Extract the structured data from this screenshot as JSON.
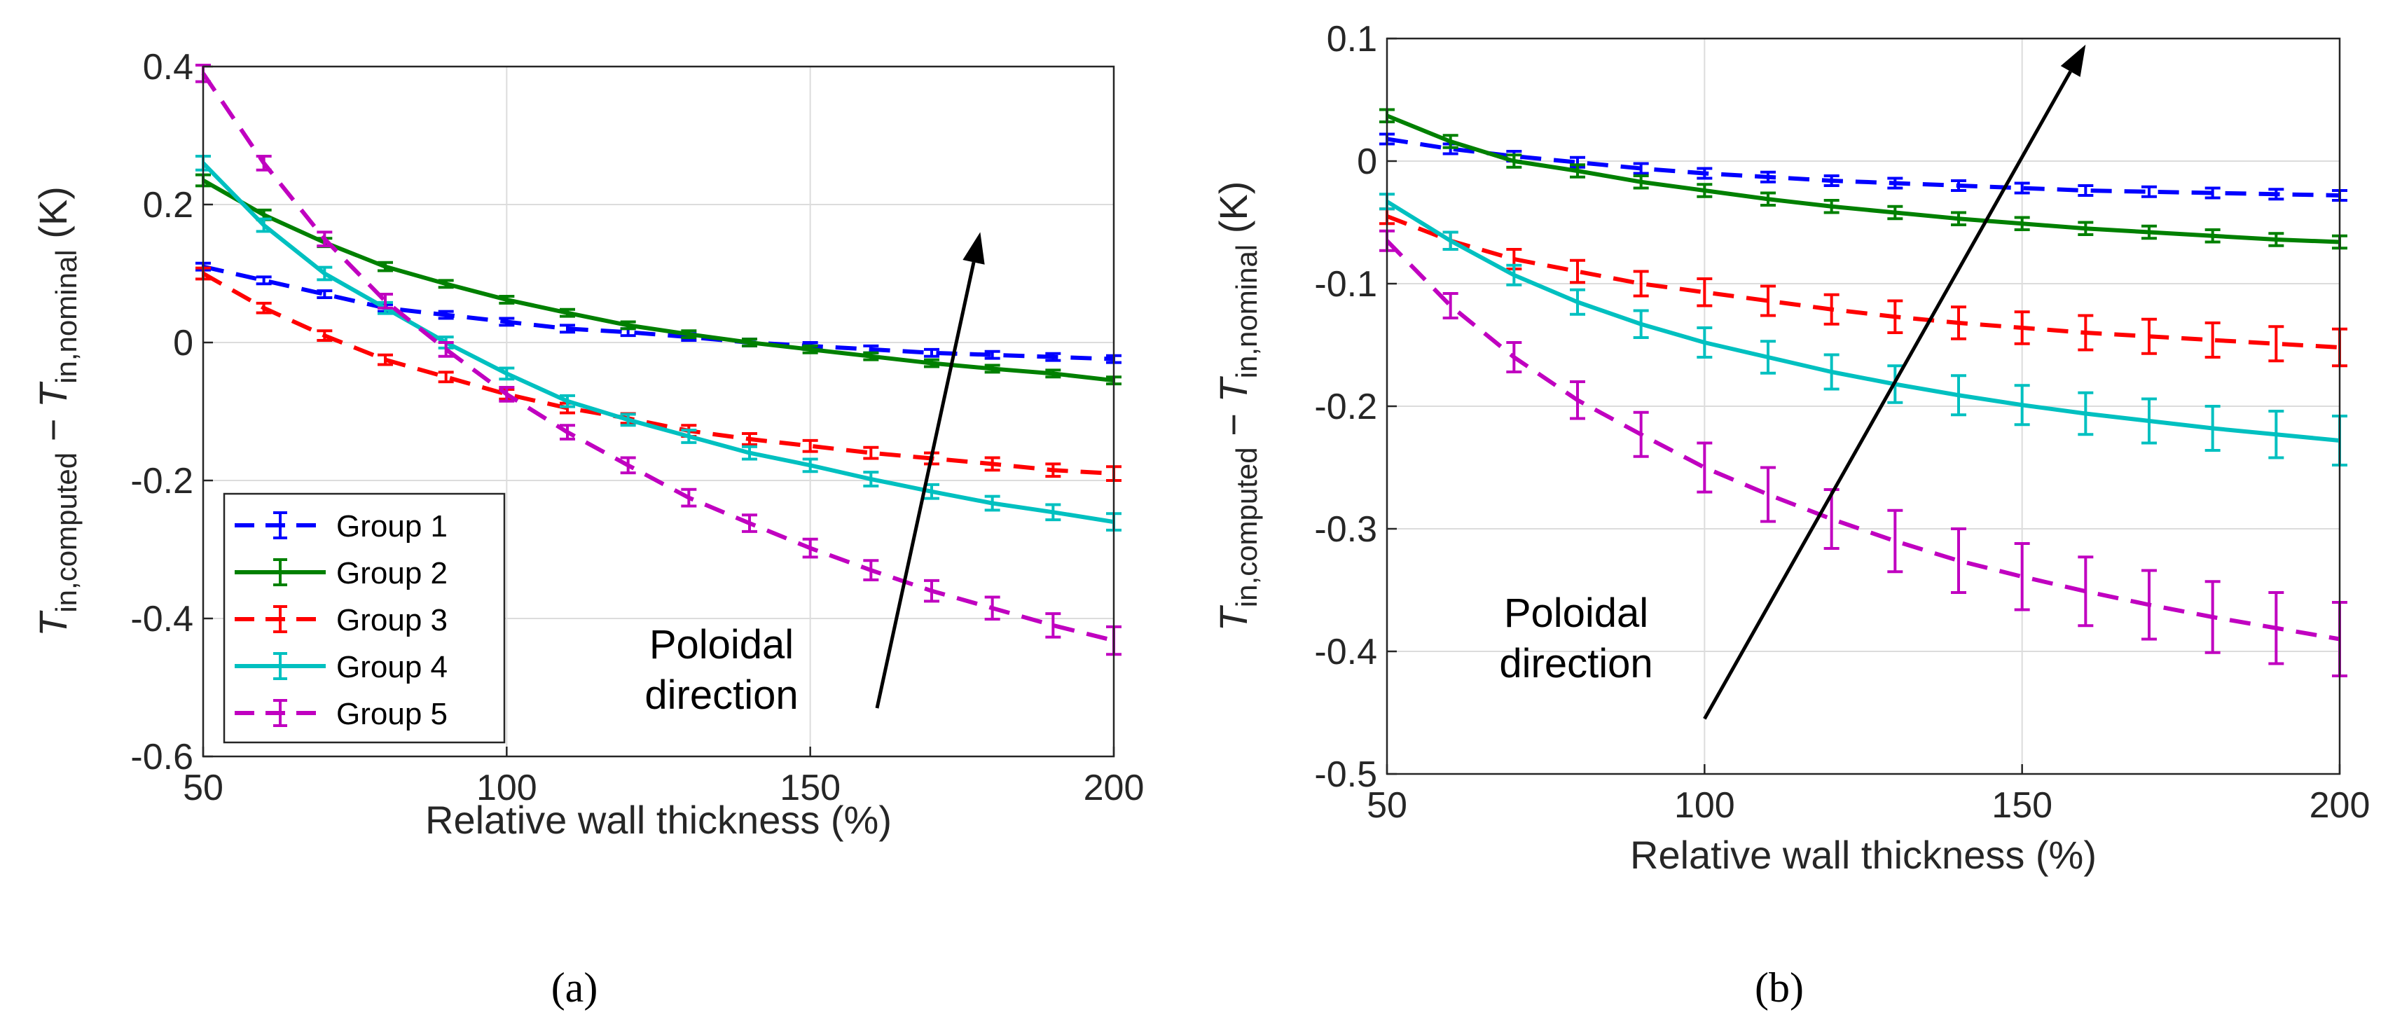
{
  "chart_data": [
    {
      "type": "line",
      "id": "a",
      "caption": "(a)",
      "xlabel": "Relative wall thickness (%)",
      "ylabel": "T_in,computed − T_in,nominal (K)",
      "xlim": [
        50,
        200
      ],
      "ylim": [
        -0.6,
        0.4
      ],
      "xticks": [
        50,
        100,
        150,
        200
      ],
      "yticks": [
        -0.6,
        -0.4,
        -0.2,
        0,
        0.2,
        0.4
      ],
      "ytick_labels": [
        "-0.6",
        "-0.4",
        "-0.2",
        "0",
        "0.2",
        "0.4"
      ],
      "grid": true,
      "legend_position": "bottom-left",
      "annotation": {
        "line1": "Poloidal",
        "line2": "direction",
        "arrow_from": [
          161,
          -0.53
        ],
        "arrow_to": [
          178,
          0.16
        ]
      },
      "x": [
        50,
        60,
        70,
        80,
        90,
        100,
        110,
        120,
        130,
        140,
        150,
        160,
        170,
        180,
        190,
        200
      ],
      "series": [
        {
          "name": "Group 1",
          "color": "#0000ff",
          "dash": true,
          "values": [
            0.11,
            0.09,
            0.07,
            0.05,
            0.04,
            0.03,
            0.02,
            0.015,
            0.008,
            0.0,
            -0.005,
            -0.01,
            -0.015,
            -0.018,
            -0.021,
            -0.024
          ],
          "errors": [
            0.005,
            0.005,
            0.005,
            0.005,
            0.005,
            0.005,
            0.005,
            0.005,
            0.005,
            0.005,
            0.005,
            0.005,
            0.005,
            0.005,
            0.005,
            0.005
          ]
        },
        {
          "name": "Group 2",
          "color": "#008000",
          "dash": false,
          "values": [
            0.235,
            0.185,
            0.145,
            0.11,
            0.085,
            0.062,
            0.043,
            0.025,
            0.012,
            0.0,
            -0.01,
            -0.02,
            -0.03,
            -0.038,
            -0.045,
            -0.055
          ],
          "errors": [
            0.008,
            0.007,
            0.006,
            0.006,
            0.005,
            0.005,
            0.005,
            0.005,
            0.005,
            0.005,
            0.005,
            0.005,
            0.005,
            0.005,
            0.005,
            0.005
          ]
        },
        {
          "name": "Group 3",
          "color": "#ff0000",
          "dash": true,
          "values": [
            0.1,
            0.05,
            0.01,
            -0.025,
            -0.05,
            -0.075,
            -0.095,
            -0.11,
            -0.128,
            -0.14,
            -0.15,
            -0.16,
            -0.168,
            -0.176,
            -0.185,
            -0.19
          ],
          "errors": [
            0.008,
            0.007,
            0.007,
            0.007,
            0.007,
            0.007,
            0.007,
            0.007,
            0.008,
            0.008,
            0.008,
            0.008,
            0.008,
            0.009,
            0.009,
            0.01
          ]
        },
        {
          "name": "Group 4",
          "color": "#00c0c0",
          "dash": false,
          "values": [
            0.26,
            0.17,
            0.1,
            0.05,
            0.0,
            -0.045,
            -0.085,
            -0.112,
            -0.136,
            -0.16,
            -0.178,
            -0.198,
            -0.216,
            -0.233,
            -0.246,
            -0.26
          ],
          "errors": [
            0.01,
            0.009,
            0.009,
            0.008,
            0.008,
            0.008,
            0.008,
            0.008,
            0.009,
            0.009,
            0.009,
            0.01,
            0.01,
            0.01,
            0.011,
            0.012
          ]
        },
        {
          "name": "Group 5",
          "color": "#c000c0",
          "dash": true,
          "values": [
            0.39,
            0.26,
            0.15,
            0.06,
            -0.01,
            -0.075,
            -0.13,
            -0.178,
            -0.225,
            -0.262,
            -0.298,
            -0.33,
            -0.36,
            -0.385,
            -0.41,
            -0.432
          ],
          "errors": [
            0.012,
            0.01,
            0.01,
            0.01,
            0.01,
            0.01,
            0.01,
            0.011,
            0.012,
            0.012,
            0.013,
            0.014,
            0.015,
            0.016,
            0.017,
            0.02
          ]
        }
      ]
    },
    {
      "type": "line",
      "id": "b",
      "caption": "(b)",
      "xlabel": "Relative wall thickness (%)",
      "ylabel": "T_in,computed − T_in,nominal (K)",
      "xlim": [
        50,
        200
      ],
      "ylim": [
        -0.5,
        0.1
      ],
      "xticks": [
        50,
        100,
        150,
        200
      ],
      "yticks": [
        -0.5,
        -0.4,
        -0.3,
        -0.2,
        -0.1,
        0,
        0.1
      ],
      "ytick_labels": [
        "-0.5",
        "-0.4",
        "-0.3",
        "-0.2",
        "-0.1",
        "0",
        "0.1"
      ],
      "grid": true,
      "annotation": {
        "line1": "Poloidal",
        "line2": "direction",
        "arrow_from": [
          100,
          -0.455
        ],
        "arrow_to": [
          160,
          0.095
        ]
      },
      "x": [
        50,
        60,
        70,
        80,
        90,
        100,
        110,
        120,
        130,
        140,
        150,
        160,
        170,
        180,
        190,
        200
      ],
      "series": [
        {
          "name": "Group 1",
          "color": "#0000ff",
          "dash": true,
          "values": [
            0.018,
            0.01,
            0.004,
            -0.001,
            -0.006,
            -0.01,
            -0.013,
            -0.016,
            -0.018,
            -0.02,
            -0.022,
            -0.024,
            -0.025,
            -0.026,
            -0.027,
            -0.028
          ],
          "errors": [
            0.004,
            0.004,
            0.004,
            0.004,
            0.004,
            0.004,
            0.004,
            0.004,
            0.004,
            0.004,
            0.004,
            0.004,
            0.004,
            0.004,
            0.004,
            0.004
          ]
        },
        {
          "name": "Group 2",
          "color": "#008000",
          "dash": false,
          "values": [
            0.037,
            0.016,
            0.0,
            -0.008,
            -0.017,
            -0.024,
            -0.031,
            -0.037,
            -0.042,
            -0.047,
            -0.051,
            -0.055,
            -0.058,
            -0.061,
            -0.064,
            -0.066
          ],
          "errors": [
            0.005,
            0.005,
            0.005,
            0.005,
            0.005,
            0.005,
            0.005,
            0.005,
            0.005,
            0.005,
            0.005,
            0.005,
            0.005,
            0.005,
            0.005,
            0.005
          ]
        },
        {
          "name": "Group 3",
          "color": "#ff0000",
          "dash": true,
          "values": [
            -0.045,
            -0.065,
            -0.08,
            -0.09,
            -0.1,
            -0.107,
            -0.114,
            -0.121,
            -0.127,
            -0.132,
            -0.136,
            -0.14,
            -0.143,
            -0.146,
            -0.149,
            -0.152
          ],
          "errors": [
            0.006,
            0.007,
            0.008,
            0.009,
            0.01,
            0.011,
            0.012,
            0.012,
            0.013,
            0.013,
            0.013,
            0.014,
            0.014,
            0.014,
            0.014,
            0.015
          ]
        },
        {
          "name": "Group 4",
          "color": "#00c0c0",
          "dash": false,
          "values": [
            -0.033,
            -0.065,
            -0.093,
            -0.115,
            -0.133,
            -0.148,
            -0.16,
            -0.172,
            -0.182,
            -0.191,
            -0.199,
            -0.206,
            -0.212,
            -0.218,
            -0.223,
            -0.228
          ],
          "errors": [
            0.006,
            0.007,
            0.008,
            0.01,
            0.011,
            0.012,
            0.013,
            0.014,
            0.015,
            0.016,
            0.016,
            0.017,
            0.018,
            0.018,
            0.019,
            0.02
          ]
        },
        {
          "name": "Group 5",
          "color": "#c000c0",
          "dash": true,
          "values": [
            -0.065,
            -0.118,
            -0.16,
            -0.195,
            -0.223,
            -0.25,
            -0.272,
            -0.292,
            -0.31,
            -0.326,
            -0.339,
            -0.351,
            -0.362,
            -0.372,
            -0.381,
            -0.39
          ],
          "errors": [
            0.008,
            0.01,
            0.012,
            0.015,
            0.018,
            0.02,
            0.022,
            0.024,
            0.025,
            0.026,
            0.027,
            0.028,
            0.028,
            0.029,
            0.029,
            0.03
          ]
        }
      ]
    }
  ]
}
